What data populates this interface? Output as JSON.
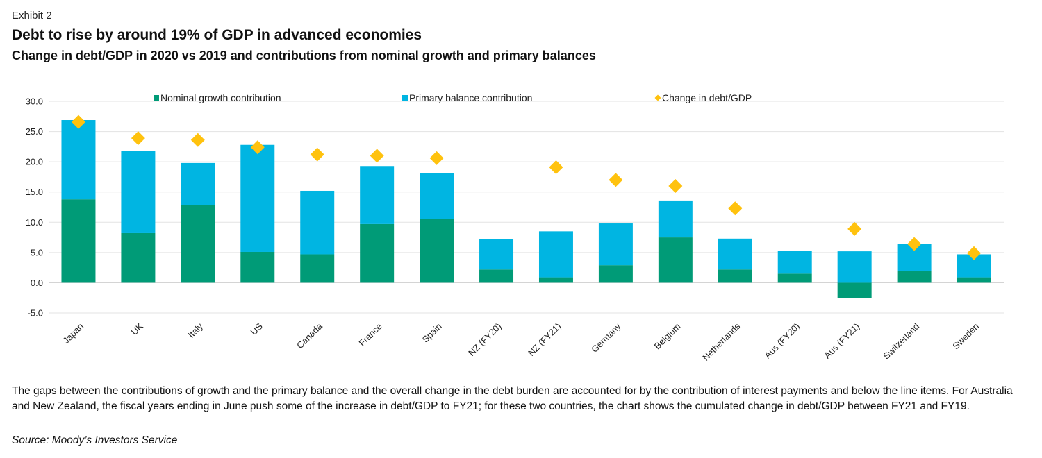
{
  "header": {
    "exhibit": "Exhibit 2",
    "title": "Debt to rise by around 19% of GDP in advanced economies",
    "subtitle": "Change in debt/GDP in 2020 vs 2019 and contributions from nominal growth and primary balances"
  },
  "footer": {
    "note": "The gaps between the contributions of growth and the primary balance and the overall change in the debt burden are accounted for by the contribution of interest payments and below the line items. For Australia and New Zealand, the fiscal years ending in June push some of the increase in debt/GDP to FY21; for these two countries, the chart shows the cumulated change in debt/GDP between FY21 and FY19.",
    "source": "Source: Moody’s Investors Service"
  },
  "colors": {
    "nominal": "#009B77",
    "primary": "#00B5E2",
    "change": "#FFC20E",
    "grid": "#e3e3e3"
  },
  "chart_data": {
    "type": "bar",
    "stacked": true,
    "title": "Change in debt/GDP in 2020 vs 2019 and contributions from nominal growth and primary balances",
    "xlabel": "",
    "ylabel": "",
    "ylim": [
      -5,
      30
    ],
    "yticks": [
      "30.0",
      "25.0",
      "20.0",
      "15.0",
      "10.0",
      "5.0",
      "0.0",
      "-5.0"
    ],
    "ytick_values": [
      30,
      25,
      20,
      15,
      10,
      5,
      0,
      -5
    ],
    "grid": true,
    "legend_position": "top",
    "categories": [
      "Japan",
      "UK",
      "Italy",
      "US",
      "Canada",
      "France",
      "Spain",
      "NZ (FY20)",
      "NZ (FY21)",
      "Germany",
      "Belgium",
      "Netherlands",
      "Aus (FY20)",
      "Aus (FY21)",
      "Switzerland",
      "Sweden"
    ],
    "series": [
      {
        "name": "Nominal growth contribution",
        "kind": "bar",
        "values": [
          13.8,
          8.2,
          12.9,
          5.1,
          4.7,
          9.7,
          10.5,
          2.2,
          0.9,
          2.9,
          7.5,
          2.2,
          1.5,
          -2.5,
          1.9,
          0.9
        ]
      },
      {
        "name": "Primary balance contribution",
        "kind": "bar",
        "values": [
          13.1,
          13.6,
          6.9,
          17.7,
          10.5,
          9.6,
          7.6,
          5.0,
          7.6,
          6.9,
          6.1,
          5.1,
          3.8,
          5.2,
          4.5,
          3.8
        ]
      },
      {
        "name": "Change in debt/GDP",
        "kind": "marker",
        "values": [
          26.6,
          23.9,
          23.6,
          22.4,
          21.2,
          21.0,
          20.6,
          null,
          19.1,
          17.0,
          16.0,
          12.3,
          null,
          8.9,
          6.4,
          4.9
        ]
      }
    ]
  }
}
